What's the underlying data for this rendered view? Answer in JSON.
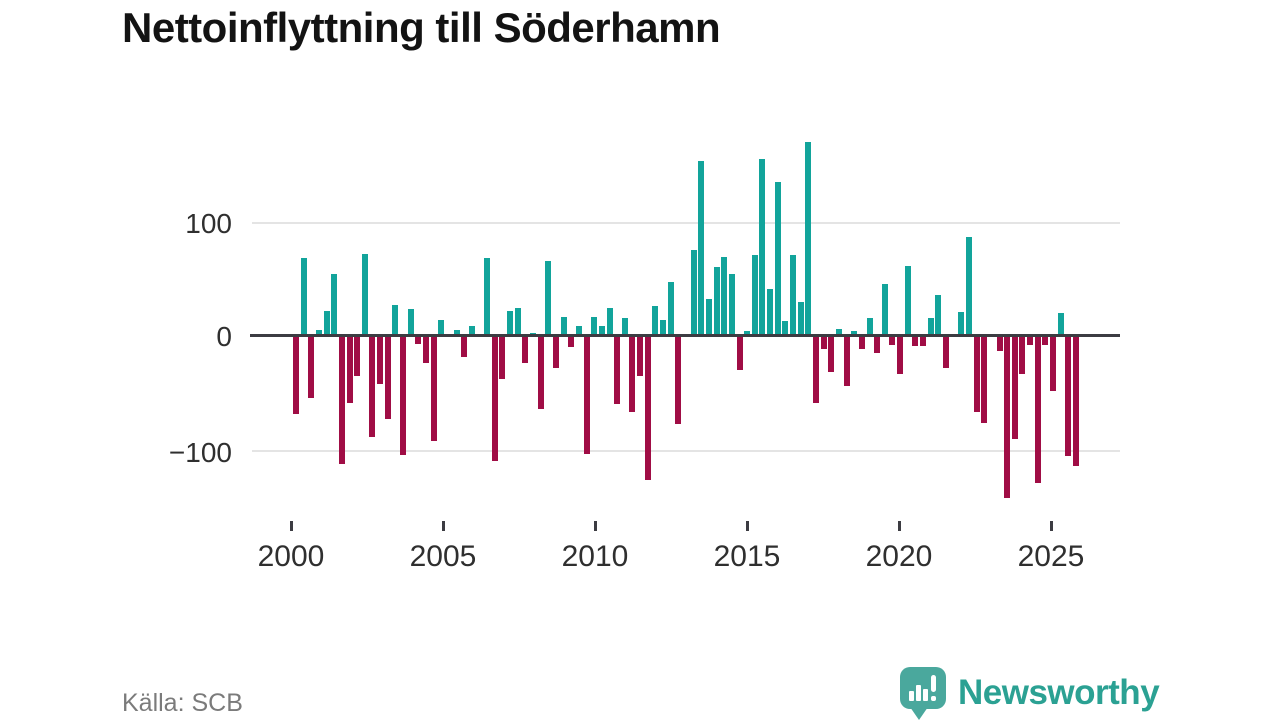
{
  "title": "Nettoinflyttning till Söderhamn",
  "source": "Källa: SCB",
  "brand": {
    "name": "Newsworthy",
    "logo_icon": "speech-bubble-bar-chart-exclamation-icon",
    "text_color": "#2ba193",
    "bubble_color": "#4aa89d"
  },
  "chart_data": {
    "type": "bar",
    "title": "Nettoinflyttning till Söderhamn",
    "ylabel": "",
    "xlabel": "",
    "frequency": "quarterly",
    "x_start": "2000-Q1",
    "x_end": "2025-Q3",
    "values": [
      -68,
      69,
      -54,
      5,
      22,
      55,
      -112,
      -58,
      -34,
      72,
      -88,
      -41,
      -72,
      27,
      -104,
      24,
      -6,
      -23,
      -92,
      14,
      0,
      5,
      -18,
      9,
      0,
      69,
      -109,
      -37,
      22,
      25,
      -23,
      3,
      -63,
      66,
      -27,
      17,
      -9,
      9,
      -103,
      17,
      9,
      25,
      -59,
      16,
      -66,
      -34,
      -126,
      26,
      14,
      48,
      -77,
      0,
      76,
      154,
      33,
      61,
      70,
      55,
      -29,
      4,
      71,
      156,
      41,
      136,
      13,
      71,
      30,
      171,
      -58,
      -11,
      -31,
      6,
      -43,
      4,
      -11,
      16,
      -14,
      46,
      -7,
      -33,
      62,
      -8,
      -8,
      16,
      36,
      -27,
      0,
      21,
      87,
      -66,
      -76,
      0,
      -12,
      -142,
      -90,
      -33,
      -7,
      -129,
      -7,
      -48,
      20,
      -105,
      -114
    ],
    "xticks": [
      2000,
      2005,
      2010,
      2015,
      2020,
      2025
    ],
    "yticks": [
      "100",
      "0",
      "−100"
    ],
    "ylim": [
      -160,
      185
    ],
    "grid": "horizontal gridlines at +100 and -100, dark zero baseline",
    "legend": "none",
    "positive_color": "#12a49b",
    "negative_color": "#a00d45"
  }
}
